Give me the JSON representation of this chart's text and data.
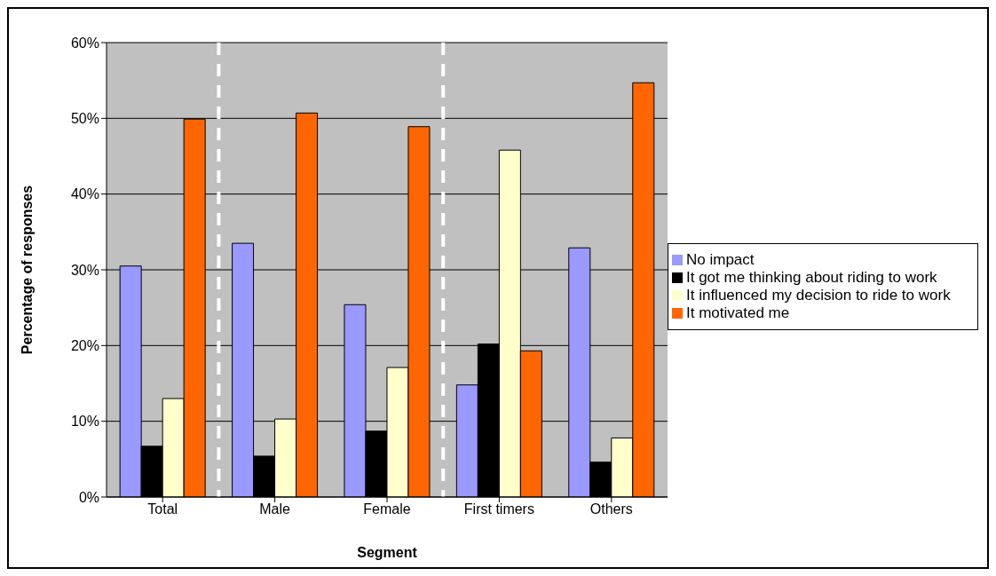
{
  "chart_data": {
    "type": "bar",
    "xlabel": "Segment",
    "ylabel": "Percentage of responses",
    "categories": [
      "Total",
      "Male",
      "Female",
      "First timers",
      "Others"
    ],
    "series": [
      {
        "name": "No impact",
        "color": "#9999ff",
        "values": [
          30.5,
          33.5,
          25.4,
          14.8,
          32.9
        ]
      },
      {
        "name": "It got me thinking about riding to work",
        "color": "#000000",
        "values": [
          6.7,
          5.4,
          8.7,
          20.2,
          4.6
        ]
      },
      {
        "name": "It influenced my decision to ride to work",
        "color": "#ffffcc",
        "values": [
          13,
          10.3,
          17.1,
          45.8,
          7.8
        ]
      },
      {
        "name": "It motivated me",
        "color": "#ff6600",
        "values": [
          49.9,
          50.7,
          48.9,
          19.3,
          54.7
        ]
      }
    ],
    "ylim": [
      0,
      60
    ],
    "yticks": [
      {
        "value": 0,
        "label": "0%"
      },
      {
        "value": 10,
        "label": "10%"
      },
      {
        "value": 20,
        "label": "20%"
      },
      {
        "value": 30,
        "label": "30%"
      },
      {
        "value": 40,
        "label": "40%"
      },
      {
        "value": 50,
        "label": "50%"
      },
      {
        "value": 60,
        "label": "60%"
      }
    ],
    "grid": "y",
    "legend": "right"
  }
}
